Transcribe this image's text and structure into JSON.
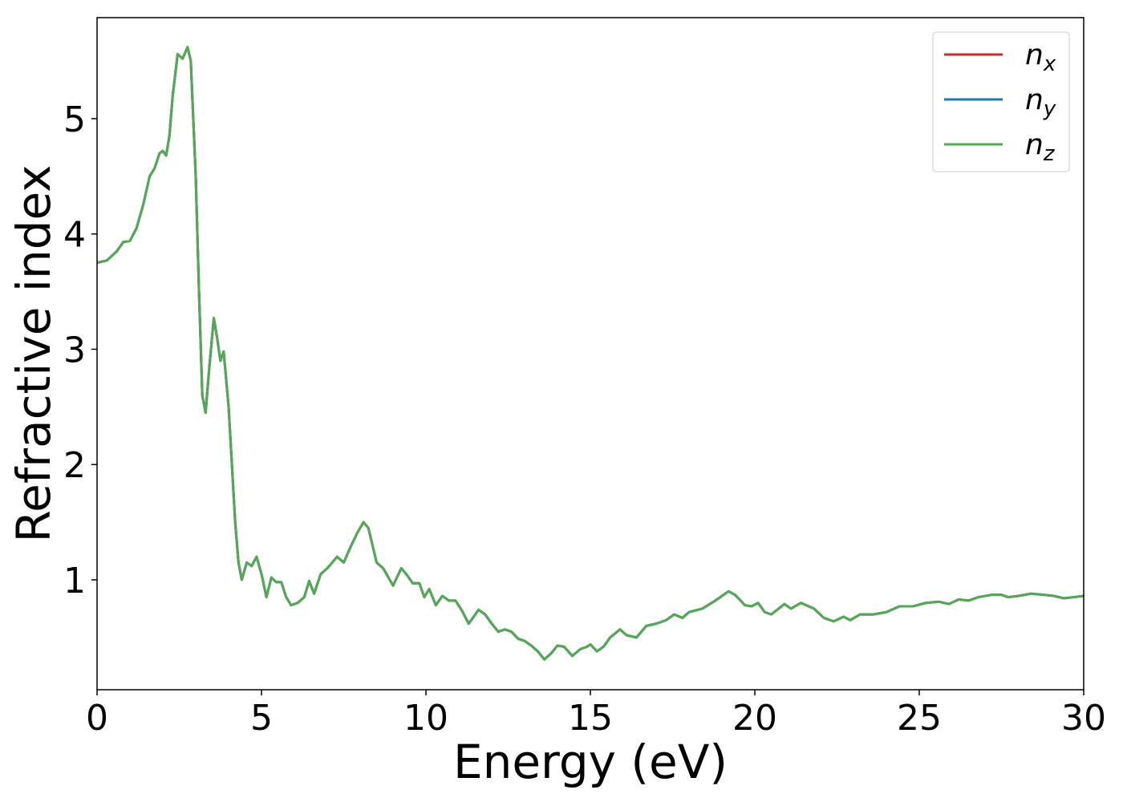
{
  "chart_data": {
    "type": "line",
    "xlabel": "Energy (eV)",
    "ylabel": "Refractive index",
    "x": [
      0,
      0.3,
      0.6,
      0.8,
      1.0,
      1.2,
      1.4,
      1.6,
      1.75,
      1.9,
      2.0,
      2.1,
      2.2,
      2.3,
      2.45,
      2.6,
      2.75,
      2.85,
      3.0,
      3.1,
      3.2,
      3.3,
      3.4,
      3.55,
      3.65,
      3.75,
      3.85,
      4.0,
      4.1,
      4.2,
      4.3,
      4.4,
      4.55,
      4.7,
      4.85,
      5.0,
      5.15,
      5.3,
      5.45,
      5.6,
      5.75,
      5.9,
      6.1,
      6.3,
      6.45,
      6.6,
      6.8,
      7.0,
      7.3,
      7.5,
      7.7,
      7.9,
      8.1,
      8.25,
      8.5,
      8.7,
      8.9,
      9.0,
      9.25,
      9.4,
      9.6,
      9.8,
      9.95,
      10.1,
      10.3,
      10.5,
      10.7,
      10.9,
      11.1,
      11.3,
      11.6,
      11.8,
      12.0,
      12.2,
      12.4,
      12.6,
      12.8,
      13.0,
      13.2,
      13.4,
      13.6,
      13.8,
      14.0,
      14.2,
      14.45,
      14.7,
      14.9,
      15.0,
      15.2,
      15.4,
      15.6,
      15.9,
      16.1,
      16.4,
      16.7,
      17.0,
      17.3,
      17.55,
      17.8,
      18.0,
      18.4,
      18.8,
      19.2,
      19.4,
      19.7,
      19.9,
      20.1,
      20.3,
      20.5,
      20.9,
      21.1,
      21.4,
      21.8,
      22.1,
      22.4,
      22.7,
      22.9,
      23.2,
      23.6,
      24.0,
      24.4,
      24.8,
      25.2,
      25.6,
      25.9,
      26.2,
      26.5,
      26.8,
      27.2,
      27.5,
      27.7,
      28.0,
      28.4,
      28.8,
      29.1,
      29.4,
      29.7,
      30
    ],
    "series": [
      {
        "name": "nx",
        "color": "#d62728",
        "values": [
          3.75,
          3.77,
          3.85,
          3.93,
          3.94,
          4.05,
          4.25,
          4.5,
          4.57,
          4.7,
          4.72,
          4.68,
          4.85,
          5.2,
          5.56,
          5.52,
          5.62,
          5.5,
          4.5,
          3.5,
          2.6,
          2.45,
          2.8,
          3.27,
          3.1,
          2.9,
          2.98,
          2.5,
          2.0,
          1.5,
          1.15,
          1.0,
          1.15,
          1.12,
          1.2,
          1.05,
          0.85,
          1.02,
          0.98,
          0.98,
          0.85,
          0.78,
          0.8,
          0.85,
          0.99,
          0.88,
          1.05,
          1.1,
          1.2,
          1.15,
          1.28,
          1.4,
          1.5,
          1.45,
          1.15,
          1.1,
          1.0,
          0.95,
          1.1,
          1.05,
          0.97,
          0.97,
          0.85,
          0.92,
          0.78,
          0.86,
          0.82,
          0.82,
          0.73,
          0.62,
          0.74,
          0.7,
          0.62,
          0.55,
          0.57,
          0.55,
          0.49,
          0.47,
          0.43,
          0.38,
          0.31,
          0.36,
          0.43,
          0.42,
          0.34,
          0.4,
          0.42,
          0.44,
          0.38,
          0.42,
          0.5,
          0.57,
          0.52,
          0.5,
          0.6,
          0.62,
          0.65,
          0.7,
          0.67,
          0.72,
          0.75,
          0.82,
          0.9,
          0.87,
          0.78,
          0.77,
          0.8,
          0.72,
          0.7,
          0.79,
          0.75,
          0.8,
          0.75,
          0.67,
          0.64,
          0.68,
          0.65,
          0.7,
          0.7,
          0.72,
          0.77,
          0.77,
          0.8,
          0.81,
          0.79,
          0.83,
          0.82,
          0.85,
          0.87,
          0.87,
          0.85,
          0.86,
          0.88,
          0.87,
          0.86,
          0.84,
          0.85,
          0.86
        ]
      },
      {
        "name": "ny",
        "color": "#1f77b4",
        "values": [
          3.75,
          3.77,
          3.85,
          3.93,
          3.94,
          4.05,
          4.25,
          4.5,
          4.57,
          4.7,
          4.72,
          4.68,
          4.85,
          5.2,
          5.56,
          5.52,
          5.62,
          5.5,
          4.5,
          3.5,
          2.6,
          2.45,
          2.8,
          3.27,
          3.1,
          2.9,
          2.98,
          2.5,
          2.0,
          1.5,
          1.15,
          1.0,
          1.15,
          1.12,
          1.2,
          1.05,
          0.85,
          1.02,
          0.98,
          0.98,
          0.85,
          0.78,
          0.8,
          0.85,
          0.99,
          0.88,
          1.05,
          1.1,
          1.2,
          1.15,
          1.28,
          1.4,
          1.5,
          1.45,
          1.15,
          1.1,
          1.0,
          0.95,
          1.1,
          1.05,
          0.97,
          0.97,
          0.85,
          0.92,
          0.78,
          0.86,
          0.82,
          0.82,
          0.73,
          0.62,
          0.74,
          0.7,
          0.62,
          0.55,
          0.57,
          0.55,
          0.49,
          0.47,
          0.43,
          0.38,
          0.31,
          0.36,
          0.43,
          0.42,
          0.34,
          0.4,
          0.42,
          0.44,
          0.38,
          0.42,
          0.5,
          0.57,
          0.52,
          0.5,
          0.6,
          0.62,
          0.65,
          0.7,
          0.67,
          0.72,
          0.75,
          0.82,
          0.9,
          0.87,
          0.78,
          0.77,
          0.8,
          0.72,
          0.7,
          0.79,
          0.75,
          0.8,
          0.75,
          0.67,
          0.64,
          0.68,
          0.65,
          0.7,
          0.7,
          0.72,
          0.77,
          0.77,
          0.8,
          0.81,
          0.79,
          0.83,
          0.82,
          0.85,
          0.87,
          0.87,
          0.85,
          0.86,
          0.88,
          0.87,
          0.86,
          0.84,
          0.85,
          0.86
        ]
      },
      {
        "name": "nz",
        "color": "#55a855",
        "values": [
          3.75,
          3.77,
          3.85,
          3.93,
          3.94,
          4.05,
          4.25,
          4.5,
          4.57,
          4.7,
          4.72,
          4.68,
          4.85,
          5.2,
          5.56,
          5.52,
          5.62,
          5.5,
          4.5,
          3.5,
          2.6,
          2.45,
          2.8,
          3.27,
          3.1,
          2.9,
          2.98,
          2.5,
          2.0,
          1.5,
          1.15,
          1.0,
          1.15,
          1.12,
          1.2,
          1.05,
          0.85,
          1.02,
          0.98,
          0.98,
          0.85,
          0.78,
          0.8,
          0.85,
          0.99,
          0.88,
          1.05,
          1.1,
          1.2,
          1.15,
          1.28,
          1.4,
          1.5,
          1.45,
          1.15,
          1.1,
          1.0,
          0.95,
          1.1,
          1.05,
          0.97,
          0.97,
          0.85,
          0.92,
          0.78,
          0.86,
          0.82,
          0.82,
          0.73,
          0.62,
          0.74,
          0.7,
          0.62,
          0.55,
          0.57,
          0.55,
          0.49,
          0.47,
          0.43,
          0.38,
          0.31,
          0.36,
          0.43,
          0.42,
          0.34,
          0.4,
          0.42,
          0.44,
          0.38,
          0.42,
          0.5,
          0.57,
          0.52,
          0.5,
          0.6,
          0.62,
          0.65,
          0.7,
          0.67,
          0.72,
          0.75,
          0.82,
          0.9,
          0.87,
          0.78,
          0.77,
          0.8,
          0.72,
          0.7,
          0.79,
          0.75,
          0.8,
          0.75,
          0.67,
          0.64,
          0.68,
          0.65,
          0.7,
          0.7,
          0.72,
          0.77,
          0.77,
          0.8,
          0.81,
          0.79,
          0.83,
          0.82,
          0.85,
          0.87,
          0.87,
          0.85,
          0.86,
          0.88,
          0.87,
          0.86,
          0.84,
          0.85,
          0.86
        ]
      }
    ],
    "xlim": [
      0,
      30
    ],
    "xticks": [
      0,
      5,
      10,
      15,
      20,
      25,
      30
    ],
    "ylim": [
      0.047,
      5.876
    ],
    "yticks": [
      1,
      2,
      3,
      4,
      5
    ],
    "grid": false,
    "legend": "upper right"
  }
}
